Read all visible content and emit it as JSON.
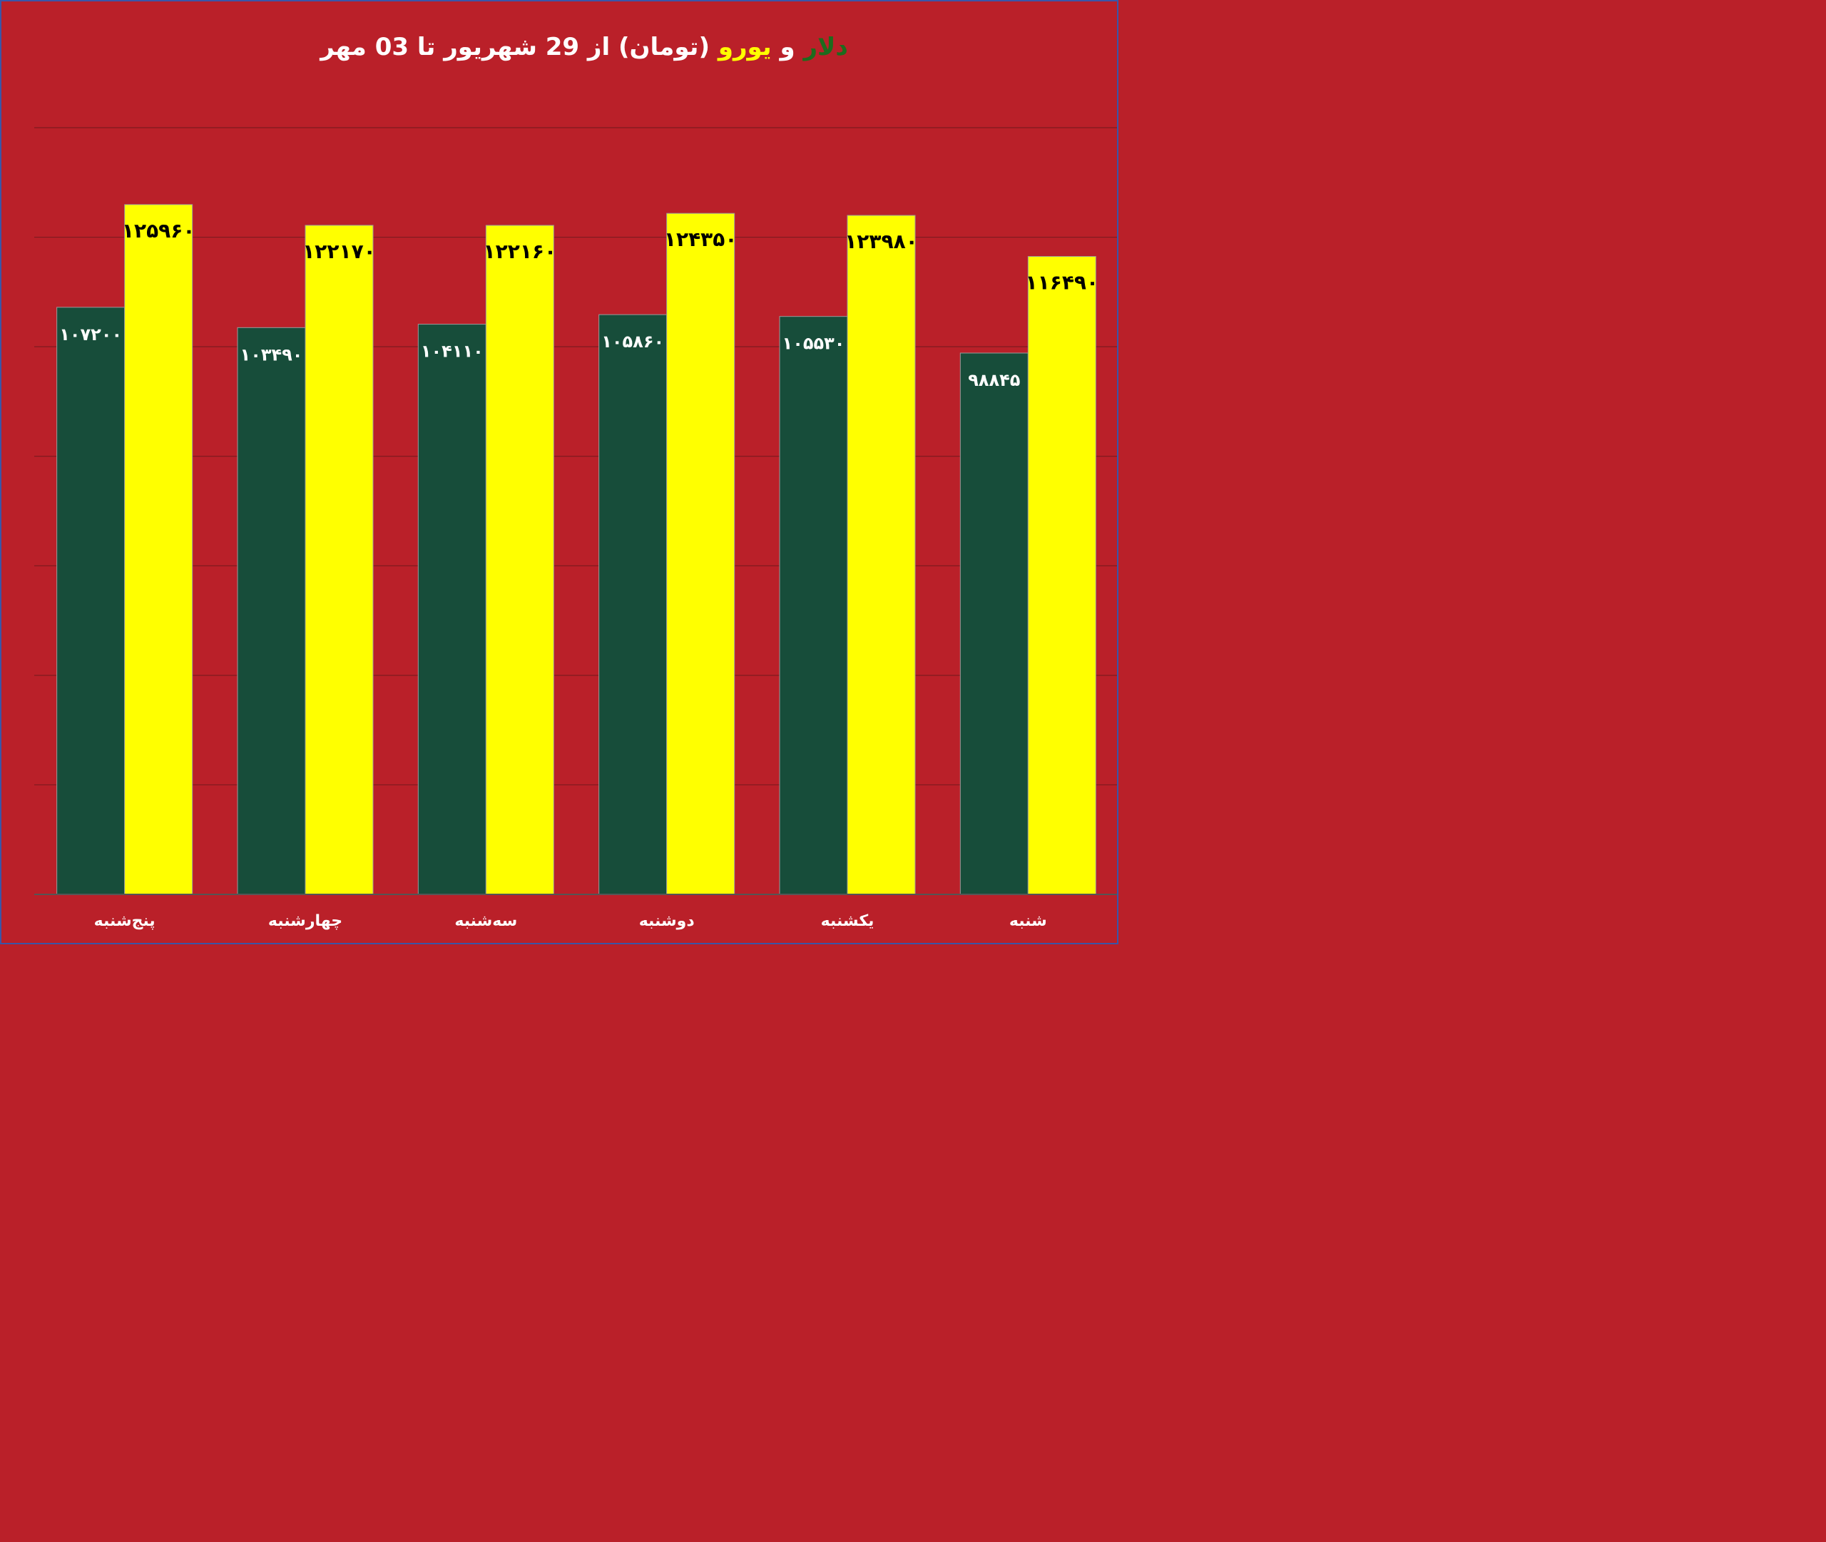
{
  "title": {
    "dollar_word": "دلار",
    "and_word": " و ",
    "euro_word": "یورو",
    "rest": " (تومان) از 29 شهریور تا 03 مهر"
  },
  "colors": {
    "background": "#ba2029",
    "dollar": "#174d3a",
    "euro": "#ffff00",
    "dollar_title": "#1d6b1d"
  },
  "chart_data": {
    "type": "bar",
    "categories": [
      "پنج‌شنبه",
      "چهارشنبه",
      "سه‌شنبه",
      "دوشنبه",
      "یکشنبه",
      "شنبه"
    ],
    "series": [
      {
        "name": "دلار",
        "values": [
          107200,
          103490,
          104110,
          105860,
          105530,
          98845
        ],
        "labels": [
          "۱۰۷۲۰۰",
          "۱۰۳۴۹۰",
          "۱۰۴۱۱۰",
          "۱۰۵۸۶۰",
          "۱۰۵۵۳۰",
          "۹۸۸۴۵"
        ]
      },
      {
        "name": "یورو",
        "values": [
          125960,
          122170,
          122160,
          124350,
          123980,
          116490
        ],
        "labels": [
          "۱۲۵۹۶۰",
          "۱۲۲۱۷۰",
          "۱۲۲۱۶۰",
          "۱۲۴۳۵۰",
          "۱۲۳۹۸۰",
          "۱۱۶۴۹۰"
        ]
      }
    ],
    "ylim": [
      0,
      140000
    ],
    "grid": true,
    "legend": "none"
  }
}
